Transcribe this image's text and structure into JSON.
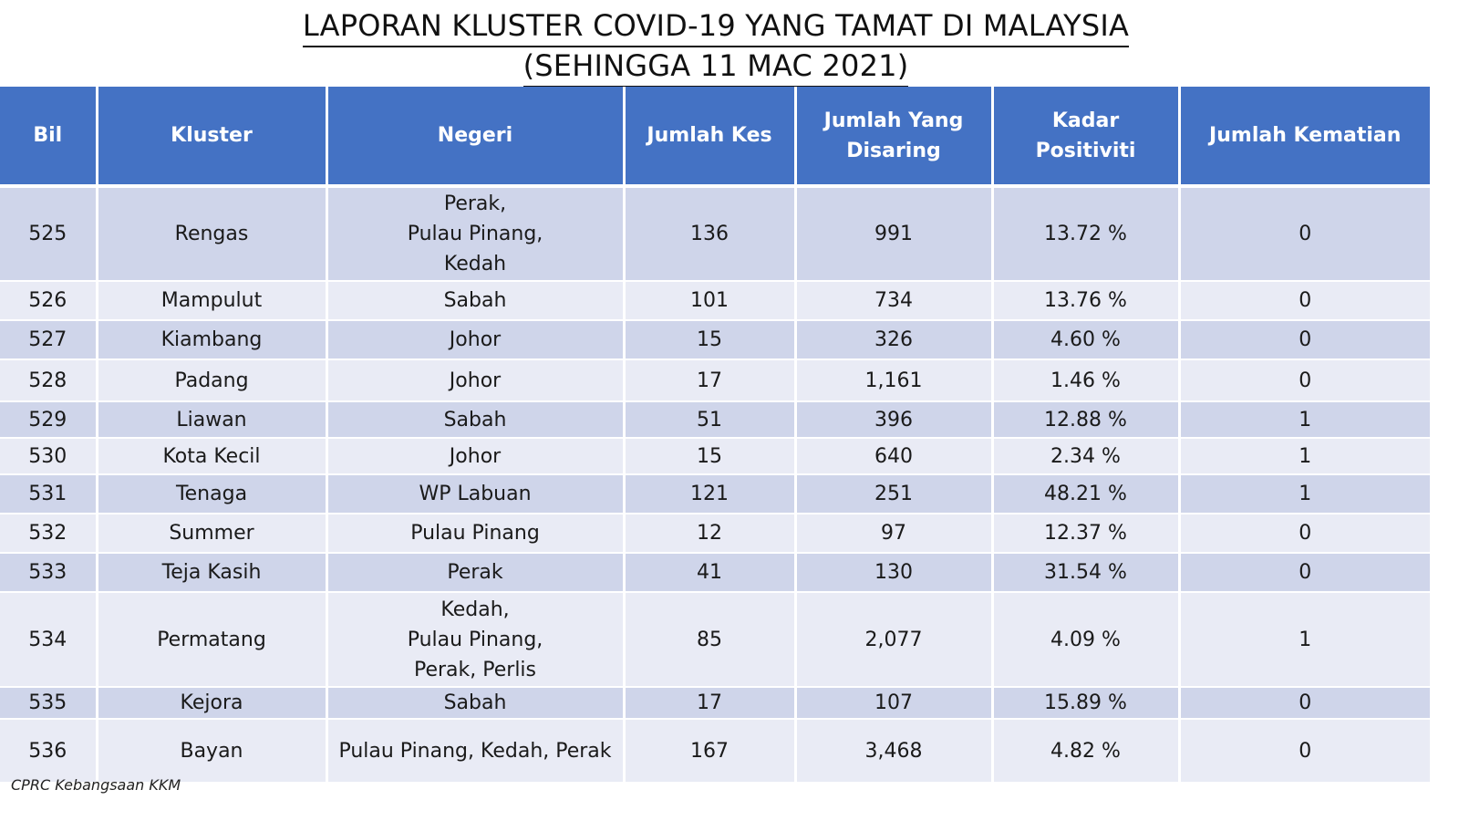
{
  "title": {
    "line1": "LAPORAN KLUSTER COVID-19 YANG TAMAT DI MALAYSIA",
    "line2": "(SEHINGGA 11 MAC 2021)"
  },
  "table": {
    "headers": [
      "Bil",
      "Kluster",
      "Negeri",
      "Jumlah Kes",
      "Jumlah Yang\nDisaring",
      "Kadar Positiviti",
      "Jumlah Kematian"
    ],
    "rows": [
      {
        "bil": "525",
        "kluster": "Rengas",
        "negeri": "Perak,\nPulau Pinang,\nKedah",
        "kes": "136",
        "disaring": "991",
        "positiviti": "13.72 %",
        "kematian": "0"
      },
      {
        "bil": "526",
        "kluster": "Mampulut",
        "negeri": "Sabah",
        "kes": "101",
        "disaring": "734",
        "positiviti": "13.76 %",
        "kematian": "0"
      },
      {
        "bil": "527",
        "kluster": "Kiambang",
        "negeri": "Johor",
        "kes": "15",
        "disaring": "326",
        "positiviti": "4.60 %",
        "kematian": "0"
      },
      {
        "bil": "528",
        "kluster": "Padang",
        "negeri": "Johor",
        "kes": "17",
        "disaring": "1,161",
        "positiviti": "1.46 %",
        "kematian": "0"
      },
      {
        "bil": "529",
        "kluster": "Liawan",
        "negeri": "Sabah",
        "kes": "51",
        "disaring": "396",
        "positiviti": "12.88 %",
        "kematian": "1"
      },
      {
        "bil": "530",
        "kluster": "Kota Kecil",
        "negeri": "Johor",
        "kes": "15",
        "disaring": "640",
        "positiviti": "2.34 %",
        "kematian": "1"
      },
      {
        "bil": "531",
        "kluster": "Tenaga",
        "negeri": "WP Labuan",
        "kes": "121",
        "disaring": "251",
        "positiviti": "48.21 %",
        "kematian": "1"
      },
      {
        "bil": "532",
        "kluster": "Summer",
        "negeri": "Pulau Pinang",
        "kes": "12",
        "disaring": "97",
        "positiviti": "12.37 %",
        "kematian": "0"
      },
      {
        "bil": "533",
        "kluster": "Teja Kasih",
        "negeri": "Perak",
        "kes": "41",
        "disaring": "130",
        "positiviti": "31.54 %",
        "kematian": "0"
      },
      {
        "bil": "534",
        "kluster": "Permatang",
        "negeri": "Kedah,\nPulau Pinang,\nPerak, Perlis",
        "kes": "85",
        "disaring": "2,077",
        "positiviti": "4.09 %",
        "kematian": "1"
      },
      {
        "bil": "535",
        "kluster": "Kejora",
        "negeri": "Sabah",
        "kes": "17",
        "disaring": "107",
        "positiviti": "15.89 %",
        "kematian": "0"
      },
      {
        "bil": "536",
        "kluster": "Bayan",
        "negeri": "Pulau Pinang, Kedah, Perak",
        "kes": "167",
        "disaring": "3,468",
        "positiviti": "4.82 %",
        "kematian": "0"
      }
    ]
  },
  "footer": {
    "source": "CPRC Kebangsaan KKM"
  }
}
